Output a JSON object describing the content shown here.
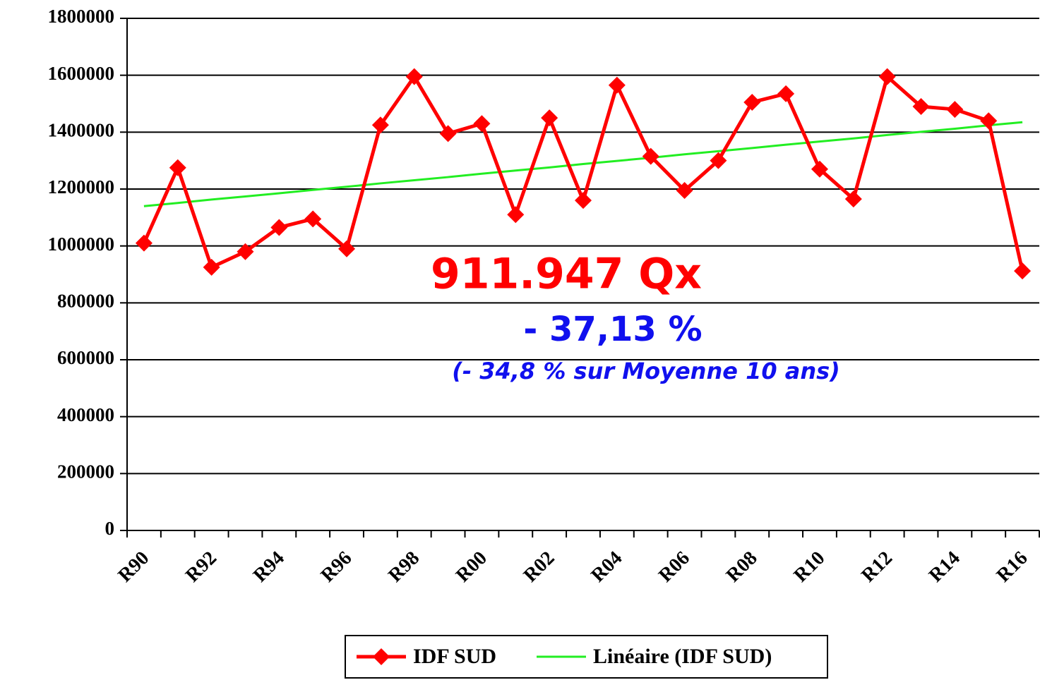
{
  "chart_data": {
    "type": "line",
    "categories": [
      "R90",
      null,
      "R92",
      null,
      "R94",
      null,
      "R96",
      null,
      "R98",
      null,
      "R00",
      null,
      "R02",
      null,
      "R04",
      null,
      "R06",
      null,
      "R08",
      null,
      "R10",
      null,
      "R12",
      null,
      "R14",
      null,
      "R16"
    ],
    "series": [
      {
        "name": "IDF SUD",
        "color": "#ff0000",
        "marker": "diamond",
        "values": [
          1010000,
          1275000,
          925000,
          980000,
          1065000,
          1095000,
          990000,
          1425000,
          1595000,
          1395000,
          1430000,
          1110000,
          1450000,
          1160000,
          1565000,
          1315000,
          1195000,
          1300000,
          1505000,
          1535000,
          1270000,
          1165000,
          1595000,
          1490000,
          1480000,
          1440000,
          911947
        ]
      },
      {
        "name": "Linéaire (IDF SUD)",
        "color": "#22ee22",
        "marker": "none",
        "values": [
          1140000,
          1151000,
          1163000,
          1174000,
          1185000,
          1197000,
          1208000,
          1220000,
          1231000,
          1242000,
          1254000,
          1265000,
          1276000,
          1288000,
          1299000,
          1310000,
          1322000,
          1333000,
          1344000,
          1356000,
          1367000,
          1378000,
          1390000,
          1401000,
          1412000,
          1424000,
          1435000
        ]
      }
    ],
    "ylim": [
      0,
      1800000
    ],
    "yticks": [
      0,
      200000,
      400000,
      600000,
      800000,
      1000000,
      1200000,
      1400000,
      1600000,
      1800000
    ],
    "grid": true,
    "legend": "bottom",
    "annotations": [
      {
        "text": "911.947 Qx",
        "color": "#ff0000"
      },
      {
        "text": "- 37,13 %",
        "color": "#1010ee"
      },
      {
        "text": "(- 34,8 % sur Moyenne 10 ans)",
        "color": "#1010ee"
      }
    ]
  }
}
